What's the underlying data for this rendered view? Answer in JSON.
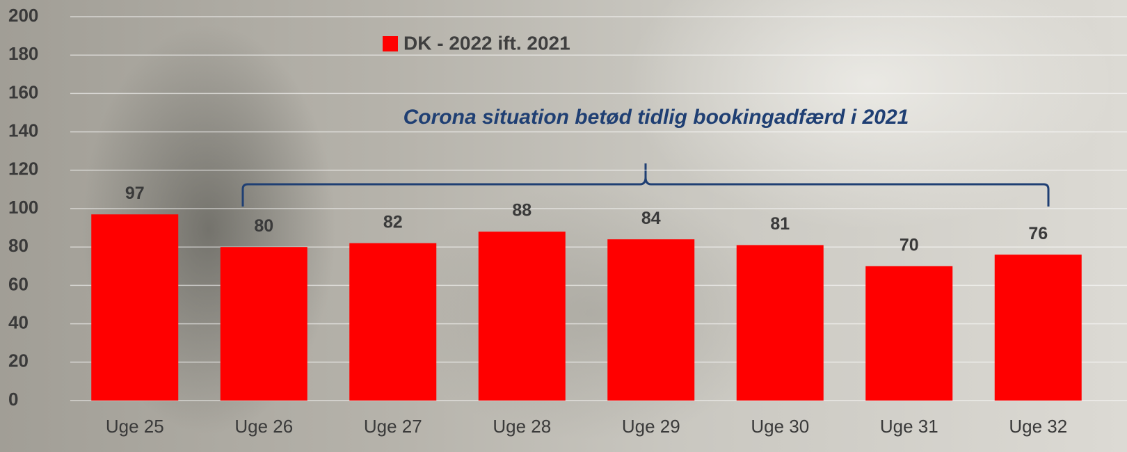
{
  "chart_data": {
    "type": "bar",
    "categories": [
      "Uge 25",
      "Uge 26",
      "Uge 27",
      "Uge 28",
      "Uge 29",
      "Uge 30",
      "Uge 31",
      "Uge 32"
    ],
    "series": [
      {
        "name": "DK - 2022 ift. 2021",
        "color": "#ff0000",
        "values": [
          97,
          80,
          82,
          88,
          84,
          81,
          70,
          76
        ]
      }
    ],
    "annotation": "Corona situation betød tidlig bookingadfærd i 2021",
    "ylim": [
      0,
      200
    ],
    "yticks": [
      0,
      20,
      40,
      60,
      80,
      100,
      120,
      140,
      160,
      180,
      200
    ],
    "grid": true
  }
}
